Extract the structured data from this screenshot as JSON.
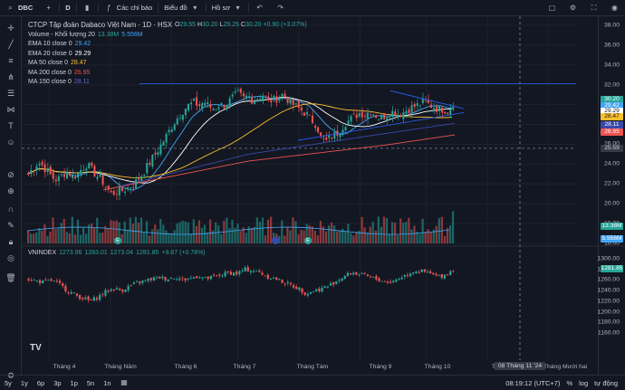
{
  "toolbar": {
    "symbol": "DBC",
    "interval": "D",
    "indicators_label": "Các chỉ báo",
    "chart_type_label": "Biểu đồ",
    "templates_label": "Hồ sơ"
  },
  "legend": {
    "title": "CTCP Tập đoàn Dabaco Việt Nam · 1D · HSX",
    "ohlc": {
      "o_label": "O",
      "o": "29.55",
      "h_label": "H",
      "h": "30.20",
      "l_label": "L",
      "l": "29.25",
      "c_label": "C",
      "c": "30.20",
      "change": "+0.90 (+3.07%)"
    },
    "indicators": [
      {
        "label": "Volume - Khối lượng 20",
        "value": "13.38M",
        "value2": "5.556M",
        "color": "#42a5f5"
      },
      {
        "label": "EMA 10 close 0",
        "value": "29.42",
        "color": "#42a5f5"
      },
      {
        "label": "EMA 20 close 0",
        "value": "29.29",
        "color": "#ffffff"
      },
      {
        "label": "MA 50 close 0",
        "value": "28.47",
        "color": "#fbc02d"
      },
      {
        "label": "MA 200 close 0",
        "value": "26.95",
        "color": "#ef5350"
      },
      {
        "label": "MA 150 close 0",
        "value": "28.11",
        "color": "#3949ab"
      }
    ]
  },
  "index_legend": {
    "symbol": "VNINDEX",
    "o": "1273.96",
    "h": "1283.01",
    "l": "1273.04",
    "c": "1281.85",
    "change": "+9.87 (+0.78%)"
  },
  "price_scale": {
    "ticks": [
      "38.00",
      "36.00",
      "34.00",
      "32.00",
      "30.00",
      "28.00",
      "26.00",
      "24.00",
      "22.00",
      "20.00",
      "18.00",
      "16.00"
    ],
    "tags": [
      {
        "text": "30.20",
        "bg": "#26a69a",
        "fg": "#ffffff"
      },
      {
        "text": "29.42",
        "bg": "#42a5f5",
        "fg": "#ffffff"
      },
      {
        "text": "29.29",
        "bg": "#ffffff",
        "fg": "#131722"
      },
      {
        "text": "28.47",
        "bg": "#fbc02d",
        "fg": "#131722"
      },
      {
        "text": "28.11",
        "bg": "#3949ab",
        "fg": "#ffffff"
      },
      {
        "text": "26.95",
        "bg": "#ef5350",
        "fg": "#ffffff"
      },
      {
        "text": "25.59",
        "bg": "#363a45",
        "fg": "#d1d4dc"
      },
      {
        "text": "13.38M",
        "bg": "#26a69a",
        "fg": "#ffffff"
      },
      {
        "text": "5.556M",
        "bg": "#42a5f5",
        "fg": "#ffffff"
      }
    ],
    "index_ticks": [
      "1300.00",
      "1280.00",
      "1260.00",
      "1240.00",
      "1220.00",
      "1200.00",
      "1180.00",
      "1160.00"
    ],
    "index_tag": {
      "text": "1281.85",
      "bg": "#26a69a"
    }
  },
  "time_axis": {
    "labels": [
      "Tháng 4",
      "Tháng Năm",
      "Tháng 6",
      "Tháng 7",
      "Tháng Tám",
      "Tháng 9",
      "Tháng 10",
      "T",
      "Tháng Mười hai"
    ],
    "crosshair_date": "08 Tháng 11 '24"
  },
  "bottom": {
    "ranges": [
      "5y",
      "1y",
      "6p",
      "3p",
      "1p",
      "5n",
      "1n"
    ],
    "clock": "08:19:12 (UTC+7)",
    "percent": "%",
    "log": "log",
    "auto": "tự động"
  },
  "markers": {
    "earnings": "E"
  },
  "colors": {
    "up": "#26a69a",
    "down": "#ef5350"
  },
  "chart_data": {
    "type": "candlestick",
    "price_range": [
      16,
      38
    ],
    "index_range": [
      1150,
      1310
    ],
    "price_path": [
      23.0,
      23.6,
      24.2,
      23.8,
      23.2,
      22.6,
      22.4,
      23.0,
      23.3,
      22.8,
      22.9,
      23.6,
      24.0,
      23.4,
      22.8,
      22.4,
      21.6,
      21.0,
      21.2,
      21.3,
      21.5,
      21.8,
      22.2,
      22.8,
      23.5,
      24.3,
      25.0,
      25.8,
      26.6,
      27.5,
      28.3,
      29.0,
      29.6,
      30.0,
      30.2,
      29.9,
      30.3,
      29.8,
      29.6,
      30.0,
      29.9,
      30.3,
      30.8,
      31.1,
      30.6,
      30.9,
      30.4,
      30.7,
      31.0,
      30.5,
      30.4,
      30.7,
      31.0,
      30.6,
      30.1,
      29.7,
      29.4,
      29.0,
      28.4,
      28.0,
      26.5,
      26.3,
      26.8,
      27.0,
      27.6,
      28.2,
      28.5,
      28.9,
      29.2,
      29.0,
      29.4,
      29.0,
      28.6,
      28.9,
      29.2,
      29.3,
      29.0,
      29.3,
      29.6,
      29.8,
      30.0,
      30.3,
      30.0,
      29.8,
      29.5,
      29.6,
      29.3,
      30.2
    ],
    "index_path": [
      1262,
      1258,
      1256,
      1259,
      1252,
      1240,
      1232,
      1226,
      1220,
      1228,
      1238,
      1244,
      1240,
      1248,
      1254,
      1258,
      1262,
      1265,
      1262,
      1266,
      1260,
      1264,
      1268,
      1262,
      1266,
      1270,
      1274,
      1272,
      1280,
      1278,
      1274,
      1266,
      1262,
      1256,
      1250,
      1244,
      1234,
      1240,
      1244,
      1250,
      1260,
      1268,
      1274,
      1270,
      1266,
      1262,
      1258,
      1256,
      1264,
      1270,
      1278,
      1276,
      1272,
      1266,
      1270,
      1281
    ]
  }
}
